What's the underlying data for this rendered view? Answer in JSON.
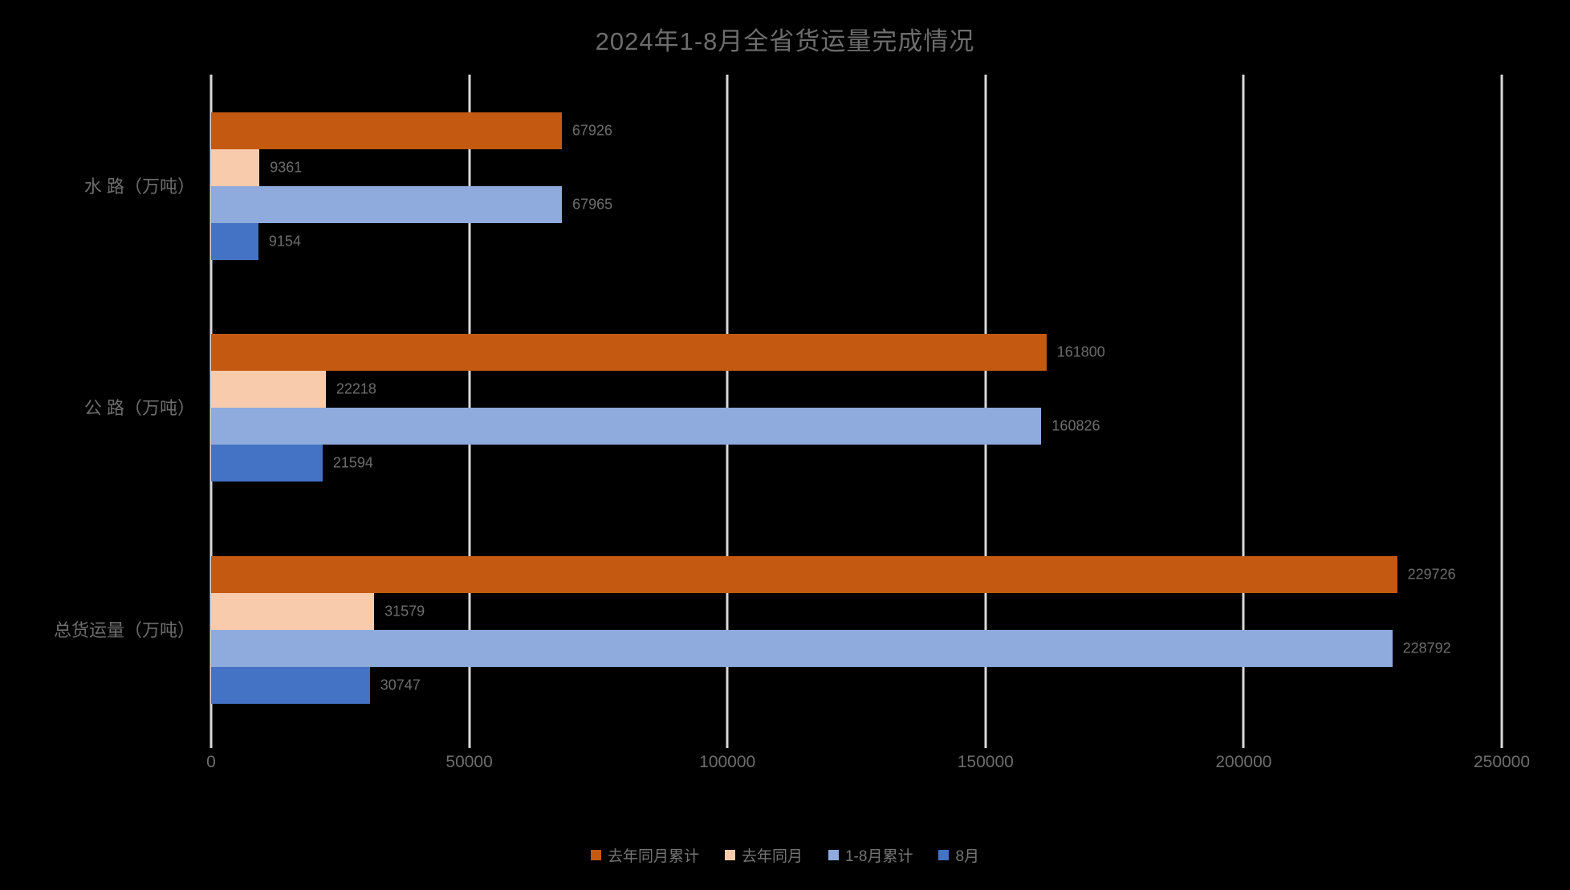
{
  "title": "2024年1-8月全省货运量完成情况",
  "colors": {
    "background": "#000000",
    "gridline": "#D9D9D9",
    "text": "#6d6d6d",
    "series_1": "#C45911",
    "series_2": "#F8CBAD",
    "series_3": "#8FAADC",
    "series_4": "#4472C4"
  },
  "chart_data": {
    "type": "bar",
    "orientation": "horizontal",
    "title": "2024年1-8月全省货运量完成情况",
    "categories": [
      "水  路（万吨）",
      "公  路（万吨）",
      "总货运量（万吨）"
    ],
    "series": [
      {
        "name": "去年同月累计",
        "color": "#C45911",
        "values": [
          67926,
          161800,
          229726
        ]
      },
      {
        "name": "去年同月",
        "color": "#F8CBAD",
        "values": [
          9361,
          22218,
          31579
        ]
      },
      {
        "name": "1-8月累计",
        "color": "#8FAADC",
        "values": [
          67965,
          160826,
          228792
        ]
      },
      {
        "name": "8月",
        "color": "#4472C4",
        "values": [
          9154,
          21594,
          30747
        ]
      }
    ],
    "xlabel": "",
    "ylabel": "",
    "xlim": [
      0,
      250000
    ],
    "x_ticks": [
      "0",
      "50000",
      "100000",
      "150000",
      "200000",
      "250000"
    ],
    "grid": true,
    "legend_position": "bottom"
  }
}
